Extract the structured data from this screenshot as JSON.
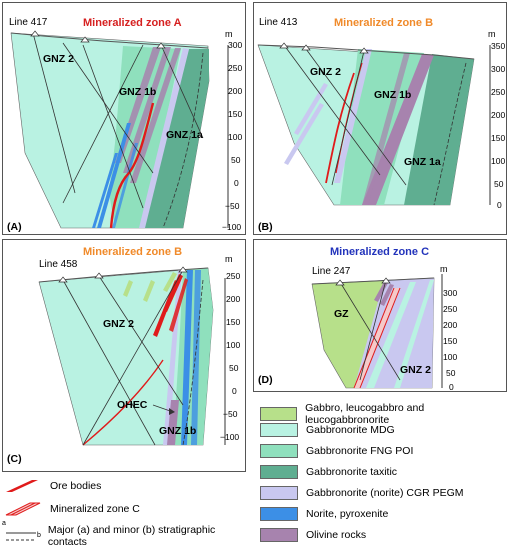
{
  "colors": {
    "gabbro": "#b7e08a",
    "mdg": "#b9f2e2",
    "fng": "#8fe0bd",
    "taxitic": "#5fae91",
    "cgr": "#c9c8f0",
    "norite": "#3c8fe6",
    "olivine": "#a783ae",
    "ore": "#e01b1b",
    "title_a": "#d62020",
    "title_b": "#f08a2a",
    "title_c": "#2233bb"
  },
  "panels": {
    "a": {
      "letter": "(A)",
      "line": "Line 417",
      "title": "Mineralized zone A",
      "unit": "m",
      "ticks": [
        "300",
        "250",
        "200",
        "150",
        "100",
        "50",
        "0",
        "−50",
        "−100"
      ],
      "labels": [
        "GNZ 2",
        "GNZ 1b",
        "GNZ 1a"
      ]
    },
    "b": {
      "letter": "(B)",
      "line": "Line 413",
      "title": "Mineralized zone B",
      "unit": "m",
      "ticks": [
        "350",
        "300",
        "250",
        "200",
        "150",
        "100",
        "50",
        "0"
      ],
      "labels": [
        "GNZ 2",
        "GNZ 1b",
        "GNZ 1a"
      ]
    },
    "c": {
      "letter": "(C)",
      "line": "Line 458",
      "title": "Mineralized zone B",
      "unit": "m",
      "ticks": [
        "250",
        "200",
        "150",
        "100",
        "50",
        "0",
        "−50",
        "−100"
      ],
      "labels": [
        "GNZ 2",
        "GNZ 1b",
        "OHEC"
      ]
    },
    "d": {
      "letter": "(D)",
      "line": "Line 247",
      "title": "Mineralized zone C",
      "unit": "m",
      "ticks": [
        "300",
        "250",
        "200",
        "150",
        "100",
        "50",
        "0"
      ],
      "labels": [
        "GZ",
        "GNZ 2"
      ]
    }
  },
  "legend_left": [
    {
      "label": "Ore bodies"
    },
    {
      "label": "Mineralized zone C"
    },
    {
      "label": "Major (a) and minor (b) stratigraphic contacts",
      "a": "a",
      "b": "b"
    }
  ],
  "legend_right": [
    {
      "label": "Gabbro, leucogabbro and leucogabbronorite",
      "color": "gabbro"
    },
    {
      "label": "Gabbronorite MDG",
      "color": "mdg"
    },
    {
      "label": "Gabbronorite FNG POI",
      "color": "fng"
    },
    {
      "label": "Gabbronorite taxitic",
      "color": "taxitic"
    },
    {
      "label": "Gabbronorite (norite) CGR PEGM",
      "color": "cgr"
    },
    {
      "label": "Norite, pyroxenite",
      "color": "norite"
    },
    {
      "label": "Olivine rocks",
      "color": "olivine"
    }
  ]
}
